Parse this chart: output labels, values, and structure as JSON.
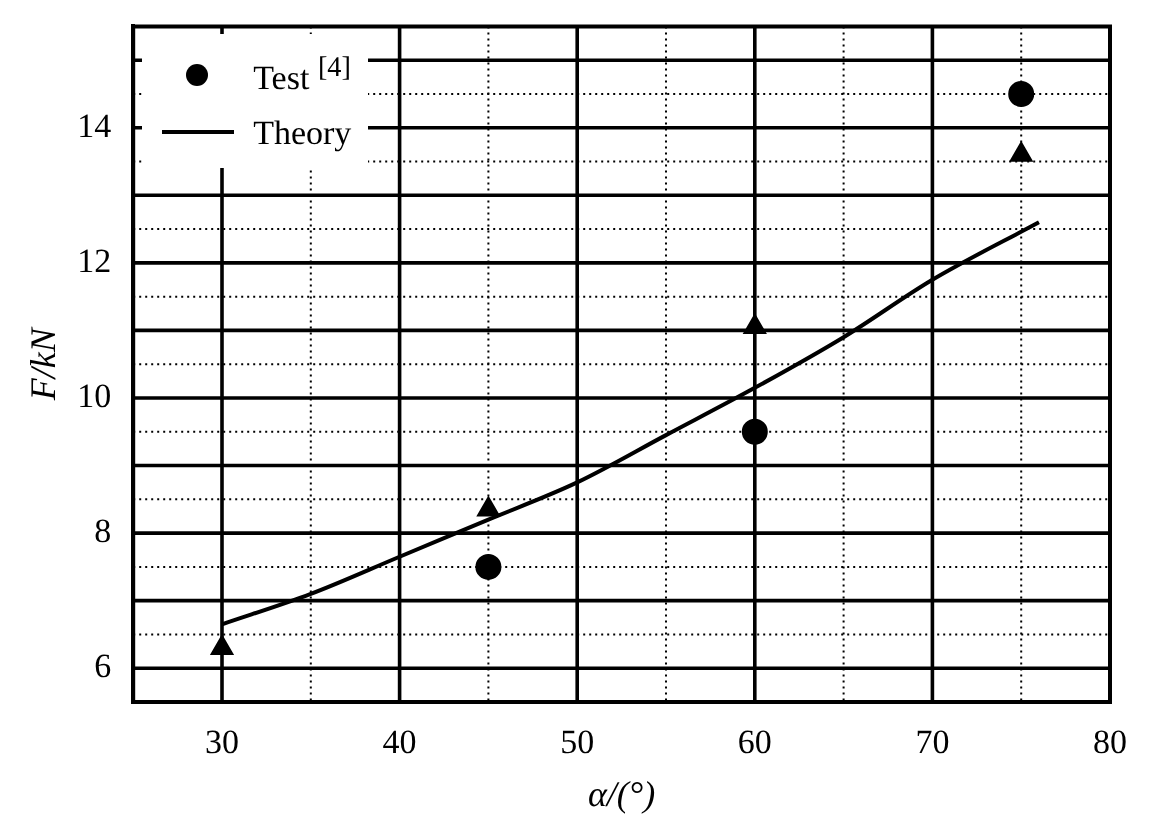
{
  "chart_data": {
    "type": "scatter",
    "xlabel": "α/(°)",
    "ylabel": "F/kN",
    "xlim": [
      25,
      80
    ],
    "xticks": [
      30,
      {
        "value": 35,
        "label": null
      },
      40,
      {
        "value": 45,
        "label": null
      },
      50,
      {
        "value": 55,
        "label": null
      },
      60,
      {
        "value": 65,
        "label": null
      },
      70,
      {
        "value": 75,
        "label": null
      },
      80
    ],
    "ylim": [
      5.5,
      15.5
    ],
    "yticks": [
      {
        "value": 5.5,
        "label": null
      },
      6,
      {
        "value": 6.5,
        "label": null
      },
      {
        "value": 7,
        "label": null
      },
      {
        "value": 7.5,
        "label": null
      },
      8,
      {
        "value": 8.5,
        "label": null
      },
      {
        "value": 9,
        "label": null
      },
      {
        "value": 9.5,
        "label": null
      },
      10,
      {
        "value": 10.5,
        "label": null
      },
      {
        "value": 11,
        "label": null
      },
      {
        "value": 11.5,
        "label": null
      },
      12,
      {
        "value": 12.5,
        "label": null
      },
      {
        "value": 13,
        "label": null
      },
      {
        "value": 13.5,
        "label": null
      },
      14,
      {
        "value": 14.5,
        "label": null
      },
      {
        "value": 15,
        "label": null
      },
      {
        "value": 15.5,
        "label": null
      }
    ],
    "grid": true,
    "legend": "top left",
    "series": [
      {
        "marker": "triangle",
        "color": "#000000",
        "x": [
          30,
          45,
          60,
          75
        ],
        "values": [
          6.3,
          8.35,
          11.05,
          13.6
        ]
      },
      {
        "name": "Test $^{[4]}$",
        "marker": "circle",
        "color": "#000000",
        "x": [
          45,
          60,
          75
        ],
        "values": [
          7.5,
          9.5,
          14.5
        ]
      },
      {
        "type": "line",
        "name": "Theory",
        "marker": "none",
        "line_style": "solid",
        "color": "#000000",
        "x": [
          30,
          35,
          40,
          45,
          50,
          55,
          60,
          65,
          70,
          76
        ],
        "values": [
          6.65,
          7.1,
          7.65,
          8.2,
          8.75,
          9.45,
          10.15,
          10.9,
          11.75,
          12.6
        ]
      }
    ]
  }
}
